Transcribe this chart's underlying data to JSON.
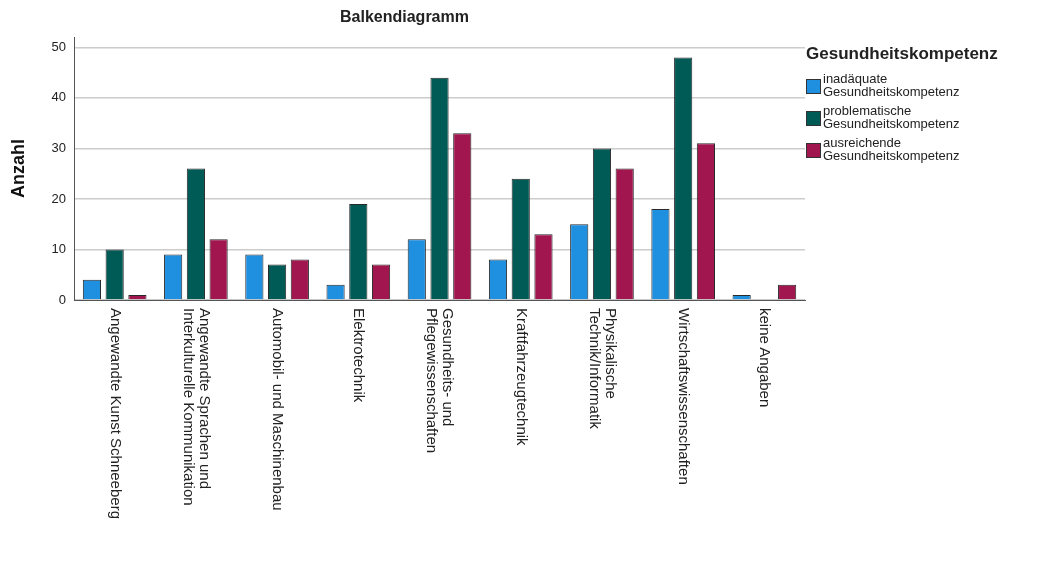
{
  "chart_data": {
    "type": "bar",
    "title": "Balkendiagramm",
    "ylabel": "Anzahl",
    "legend_title": "Gesundheitskompetenz",
    "categories": [
      "Angewandte Kunst Schneeberg",
      "Angewandte Sprachen und Interkulturelle Kommunikation",
      "Automobil- und Maschinenbau",
      "Elektrotechnik",
      "Gesundheits- und Pflegewissenschaften",
      "Kraftfahrzeugtechnik",
      "Physikalische Technik/Informatik",
      "Wirtschaftswissenschaften",
      "keine Angaben"
    ],
    "series": [
      {
        "name": "inadäquate Gesundheitskompetenz",
        "color": "#1f8fe0",
        "values": [
          4,
          9,
          9,
          3,
          12,
          8,
          15,
          18,
          1
        ]
      },
      {
        "name": "problematische Gesundheitskompetenz",
        "color": "#005a55",
        "values": [
          10,
          26,
          7,
          19,
          44,
          24,
          30,
          48,
          null
        ]
      },
      {
        "name": "ausreichende Gesundheitskompetenz",
        "color": "#a2164f",
        "values": [
          1,
          12,
          8,
          7,
          33,
          13,
          26,
          31,
          3
        ]
      }
    ],
    "ylim": [
      0,
      52
    ],
    "yticks": [
      0,
      10,
      20,
      30,
      40,
      50
    ],
    "grid": "y",
    "legend": "right"
  }
}
